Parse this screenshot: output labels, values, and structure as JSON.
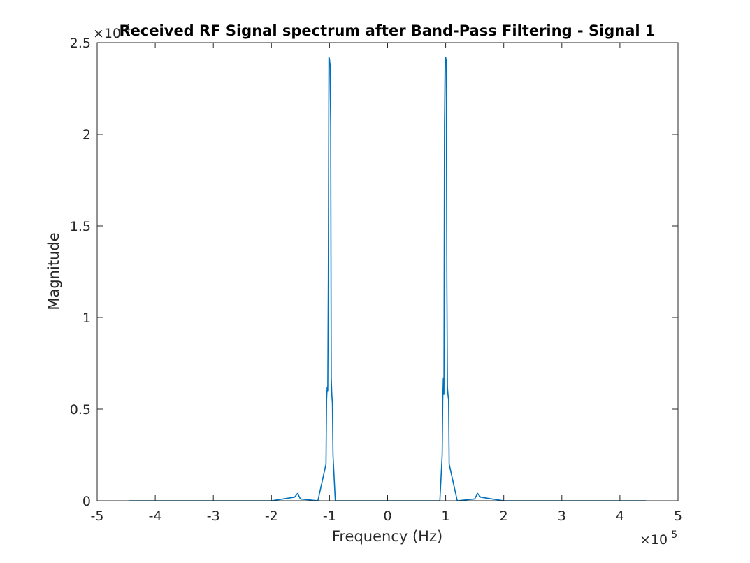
{
  "chart_data": {
    "type": "line",
    "title": "Received RF Signal spectrum after Band-Pass Filtering - Signal  1",
    "xlabel": "Frequency (Hz)",
    "ylabel": "Magnitude",
    "xlim": [
      -5,
      5
    ],
    "ylim": [
      0,
      2.5
    ],
    "x_ticks": [
      -5,
      -4,
      -3,
      -2,
      -1,
      0,
      1,
      2,
      3,
      4,
      5
    ],
    "x_tick_labels": [
      "-5",
      "-4",
      "-3",
      "-2",
      "-1",
      "0",
      "1",
      "2",
      "3",
      "4",
      "5"
    ],
    "y_ticks": [
      0,
      0.5,
      1,
      1.5,
      2,
      2.5
    ],
    "y_tick_labels": [
      "0",
      "0.5",
      "1",
      "1.5",
      "2",
      "2.5"
    ],
    "x_multiplier": {
      "base": "×10",
      "exponent": "5"
    },
    "y_multiplier": {
      "base": "×10",
      "exponent": "4"
    },
    "grid": false,
    "line_color": "#0072bd",
    "series": [
      {
        "x": [
          -4.45,
          -2.0,
          -1.8,
          -1.6,
          -1.55,
          -1.5,
          -1.2,
          -1.06,
          -1.05,
          -1.04,
          -1.03,
          -1.02,
          -1.01,
          -1.0,
          -0.99,
          -0.98,
          -0.97,
          -0.96,
          -0.95,
          -0.94,
          -0.9,
          -0.5,
          0,
          0.5,
          0.9,
          0.94,
          0.95,
          0.96,
          0.97,
          0.98,
          0.99,
          1.0,
          1.01,
          1.02,
          1.03,
          1.04,
          1.05,
          1.06,
          1.2,
          1.5,
          1.55,
          1.6,
          1.8,
          2.0,
          4.45
        ],
        "y": [
          0,
          0,
          0.01,
          0.02,
          0.04,
          0.01,
          0,
          0.2,
          0.55,
          0.62,
          0.6,
          1.2,
          2.42,
          2.41,
          2.38,
          2.05,
          0.67,
          0.58,
          0.53,
          0.25,
          0,
          0,
          0,
          0,
          0,
          0.25,
          0.55,
          0.67,
          0.58,
          2.05,
          2.38,
          2.42,
          2.4,
          1.2,
          0.62,
          0.58,
          0.55,
          0.2,
          0,
          0.01,
          0.04,
          0.02,
          0.01,
          0,
          0
        ]
      }
    ]
  }
}
